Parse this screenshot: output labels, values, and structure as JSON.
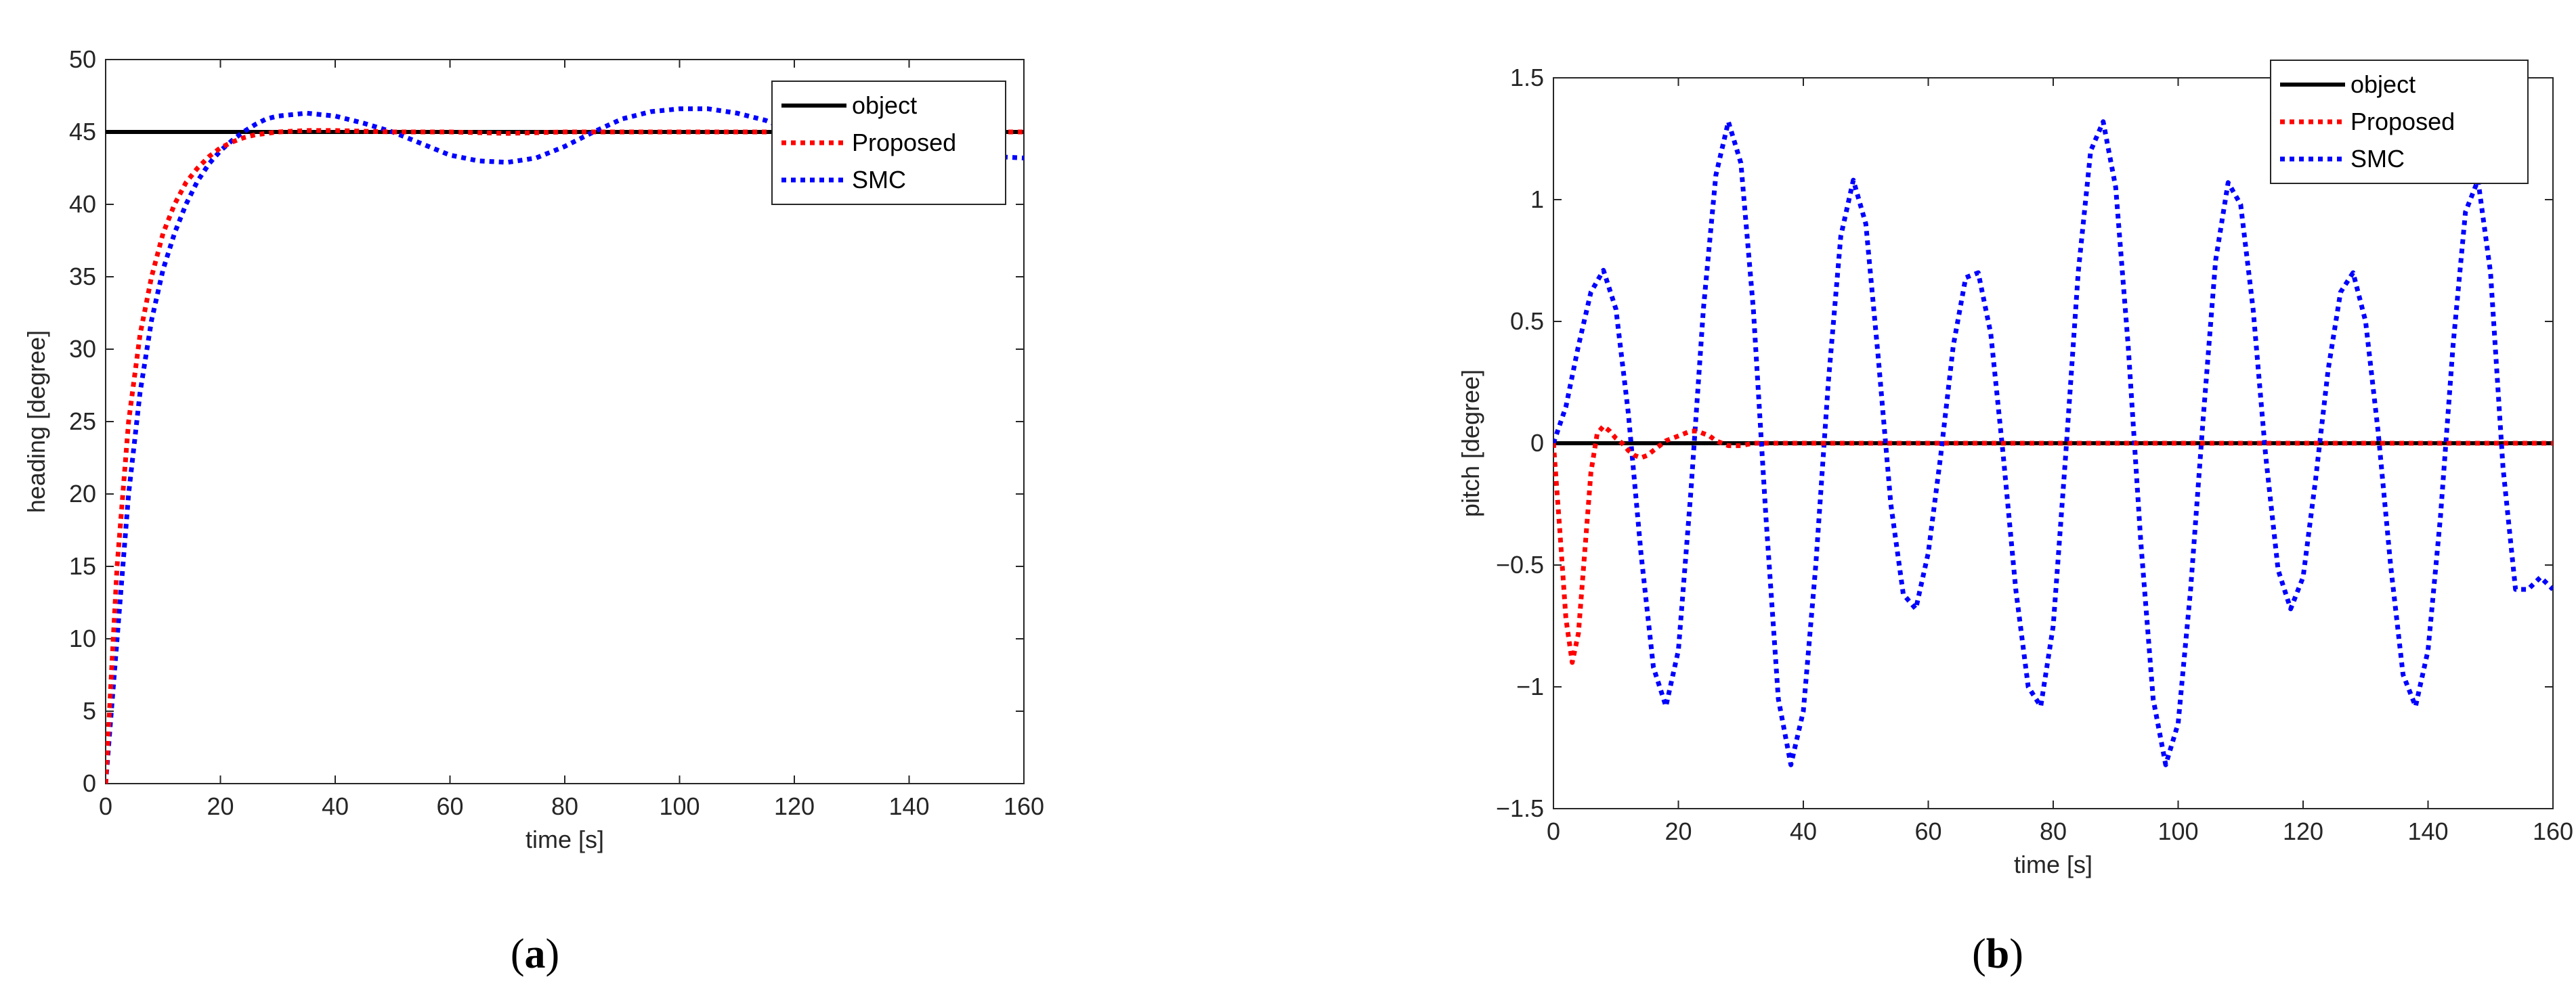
{
  "chart_data": [
    {
      "type": "line",
      "caption_open": "(",
      "caption_letter": "a",
      "caption_close": ")",
      "xlabel": "time [s]",
      "ylabel": "heading [degree]",
      "xlim": [
        0,
        160
      ],
      "ylim": [
        0,
        50
      ],
      "xticks": [
        0,
        20,
        40,
        60,
        80,
        100,
        120,
        140,
        160
      ],
      "yticks": [
        0,
        5,
        10,
        15,
        20,
        25,
        30,
        35,
        40,
        45,
        50
      ],
      "legend_position": "top-right",
      "grid": false,
      "series": [
        {
          "name": "object",
          "color": "#000000",
          "style": "solid",
          "x": [
            0,
            160
          ],
          "y": [
            45,
            45
          ]
        },
        {
          "name": "Proposed",
          "color": "#ff0000",
          "style": "dotted",
          "x": [
            0,
            2,
            4,
            6,
            8,
            10,
            12,
            14,
            16,
            18,
            20,
            22,
            24,
            26,
            28,
            30,
            35,
            40,
            50,
            60,
            70,
            80,
            90,
            100,
            110,
            120,
            130,
            140,
            150,
            160
          ],
          "y": [
            0,
            15,
            25,
            31,
            35,
            38,
            40,
            41.5,
            42.5,
            43.3,
            43.9,
            44.3,
            44.6,
            44.8,
            44.9,
            45,
            45.1,
            45.1,
            45,
            45,
            44.9,
            45,
            45,
            45,
            45,
            45,
            45,
            45,
            45,
            45
          ]
        },
        {
          "name": "SMC",
          "color": "#0000ff",
          "style": "dotted",
          "x": [
            0,
            2,
            4,
            6,
            8,
            10,
            12,
            14,
            16,
            18,
            20,
            22,
            24,
            26,
            28,
            30,
            35,
            40,
            45,
            50,
            55,
            60,
            65,
            70,
            75,
            80,
            85,
            90,
            95,
            100,
            105,
            110,
            115,
            120,
            125,
            130,
            135,
            140,
            145,
            150,
            155,
            160
          ],
          "y": [
            0,
            10,
            20,
            27,
            32,
            35.5,
            38,
            40,
            41.6,
            42.8,
            43.7,
            44.4,
            45,
            45.5,
            45.9,
            46.1,
            46.3,
            46.1,
            45.6,
            45,
            44.2,
            43.4,
            43,
            42.9,
            43.2,
            44,
            45,
            45.9,
            46.4,
            46.6,
            46.6,
            46.3,
            45.8,
            45,
            44.3,
            43.7,
            43.3,
            43.1,
            43.2,
            43.4,
            43.3,
            43.2
          ]
        }
      ]
    },
    {
      "type": "line",
      "caption_open": "(",
      "caption_letter": "b",
      "caption_close": ")",
      "xlabel": "time [s]",
      "ylabel": "pitch [degree]",
      "xlim": [
        0,
        160
      ],
      "ylim": [
        -1.5,
        1.5
      ],
      "xticks": [
        0,
        20,
        40,
        60,
        80,
        100,
        120,
        140,
        160
      ],
      "yticks": [
        -1.5,
        -1,
        -0.5,
        0,
        0.5,
        1,
        1.5
      ],
      "ytick_labels": [
        "−1.5",
        "−1",
        "−0.5",
        "0",
        "0.5",
        "1",
        "1.5"
      ],
      "legend_position": "top-right",
      "grid": false,
      "series": [
        {
          "name": "object",
          "color": "#000000",
          "style": "solid",
          "x": [
            0,
            160
          ],
          "y": [
            0,
            0
          ]
        },
        {
          "name": "Proposed",
          "color": "#ff0000",
          "style": "dotted",
          "x": [
            0,
            1,
            2,
            3,
            4,
            5,
            6,
            7,
            8,
            9,
            10,
            11,
            12,
            13,
            14,
            15,
            16,
            17,
            18,
            19,
            20,
            21,
            22,
            23,
            24,
            25,
            26,
            27,
            28,
            30,
            32,
            35,
            40,
            50,
            60,
            70,
            80,
            90,
            100,
            110,
            120,
            130,
            140,
            150,
            160
          ],
          "y": [
            0,
            -0.35,
            -0.72,
            -0.9,
            -0.78,
            -0.45,
            -0.12,
            0.04,
            0.07,
            0.05,
            0.02,
            0,
            -0.03,
            -0.05,
            -0.06,
            -0.05,
            -0.03,
            -0.01,
            0.01,
            0.02,
            0.03,
            0.04,
            0.05,
            0.05,
            0.04,
            0.03,
            0.01,
            0,
            -0.01,
            -0.01,
            0,
            0,
            0,
            0,
            0,
            0,
            0,
            0,
            0,
            0,
            0,
            0,
            0,
            0,
            0
          ]
        },
        {
          "name": "SMC",
          "color": "#0000ff",
          "style": "dotted",
          "x": [
            0,
            2,
            4,
            6,
            8,
            10,
            12,
            14,
            16,
            18,
            20,
            22,
            24,
            26,
            28,
            30,
            32,
            34,
            36,
            38,
            40,
            42,
            44,
            46,
            48,
            50,
            52,
            54,
            56,
            58,
            60,
            62,
            64,
            66,
            68,
            70,
            72,
            74,
            76,
            78,
            80,
            82,
            84,
            86,
            88,
            90,
            92,
            94,
            96,
            98,
            100,
            102,
            104,
            106,
            108,
            110,
            112,
            114,
            116,
            118,
            120,
            122,
            124,
            126,
            128,
            130,
            132,
            134,
            136,
            138,
            140,
            142,
            144,
            146,
            148,
            150,
            152,
            154,
            156,
            158,
            160
          ],
          "y": [
            0,
            0.15,
            0.4,
            0.62,
            0.71,
            0.55,
            0.12,
            -0.45,
            -0.92,
            -1.08,
            -0.85,
            -0.2,
            0.55,
            1.1,
            1.32,
            1.15,
            0.55,
            -0.3,
            -1.05,
            -1.32,
            -1.1,
            -0.5,
            0.25,
            0.85,
            1.08,
            0.9,
            0.35,
            -0.25,
            -0.62,
            -0.68,
            -0.45,
            -0.05,
            0.4,
            0.68,
            0.7,
            0.45,
            -0.05,
            -0.6,
            -1.0,
            -1.08,
            -0.75,
            -0.05,
            0.7,
            1.2,
            1.32,
            1.05,
            0.4,
            -0.4,
            -1.05,
            -1.32,
            -1.15,
            -0.6,
            0.1,
            0.75,
            1.07,
            0.98,
            0.55,
            -0.05,
            -0.52,
            -0.68,
            -0.55,
            -0.15,
            0.3,
            0.62,
            0.7,
            0.5,
            0.05,
            -0.5,
            -0.95,
            -1.08,
            -0.85,
            -0.3,
            0.4,
            0.95,
            1.08,
            0.7,
            -0.1,
            -0.6,
            -0.6,
            -0.55,
            -0.6
          ]
        }
      ]
    }
  ]
}
